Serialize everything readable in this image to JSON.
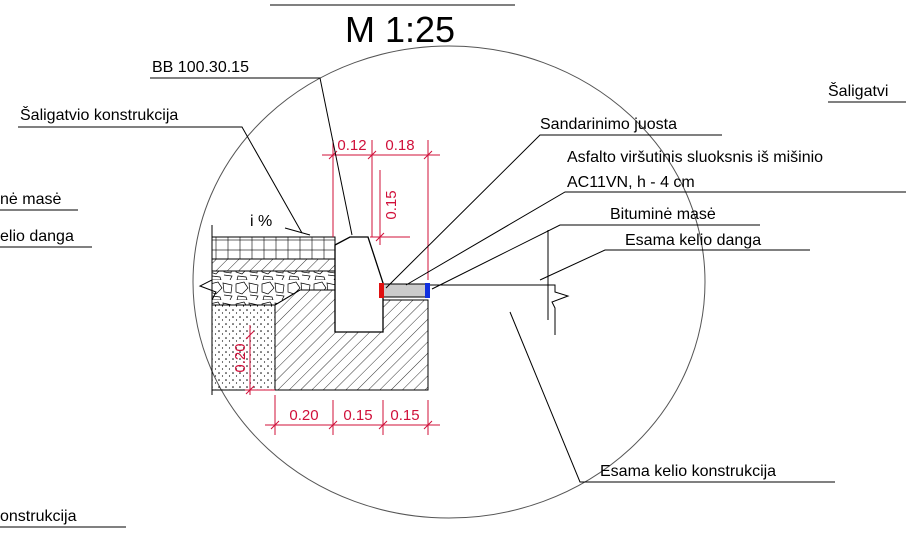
{
  "title": "M 1:25",
  "labels": {
    "curb": "BB 100.30.15",
    "sidewalk": "Šaligatvio konstrukcija",
    "seal": "Sandarinimo juosta",
    "asphalt_line1": "Asfalto viršutinis sluoksnis iš mišinio",
    "asphalt_line2": "AC11VN, h - 4 cm",
    "bitumen": "Bituminė masė",
    "road_surface": "Esama kelio danga",
    "road_structure": "Esama kelio konstrukcija",
    "slope": "i %"
  },
  "dimensions": {
    "top": [
      "0.12",
      "0.18"
    ],
    "curb_height": "0.15",
    "base_height": "0.20",
    "bottom": [
      "0.20",
      "0.15",
      "0.15"
    ]
  },
  "cut_off_labels": {
    "left": [
      "nė masė",
      "elio danga",
      "onstrukcija"
    ],
    "right": [
      "Šaligatvi"
    ]
  }
}
